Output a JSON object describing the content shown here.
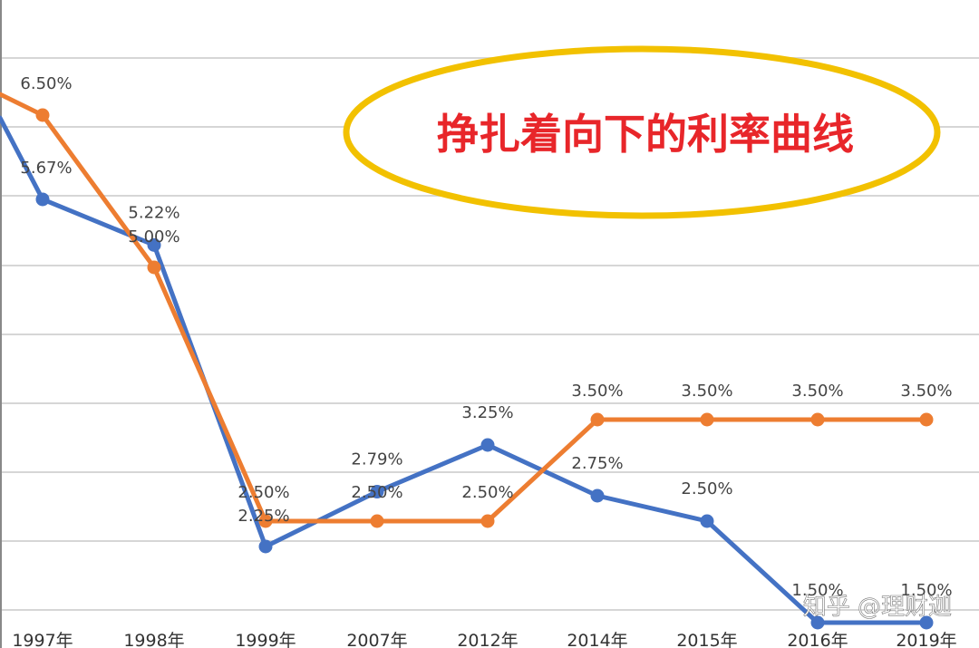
{
  "chart_data": {
    "type": "line",
    "title": "挣扎着向下的利率曲线",
    "categories": [
      "1997年",
      "1998年",
      "1999年",
      "2007年",
      "2012年",
      "2014年",
      "2015年",
      "2016年",
      "2019年"
    ],
    "series": [
      {
        "color": "#4472c4",
        "values": [
          5.67,
          5.22,
          2.25,
          2.79,
          3.25,
          2.75,
          2.5,
          1.5,
          1.5
        ],
        "labels": [
          "5.67%",
          "5.22%",
          "2.25%",
          "2.79%",
          "3.25%",
          "2.75%",
          "2.50%",
          "1.50%",
          "1.50%"
        ]
      },
      {
        "color": "#ed7d31",
        "values": [
          6.5,
          5.0,
          2.5,
          2.5,
          2.5,
          3.5,
          3.5,
          3.5,
          3.5
        ],
        "labels": [
          "6.50%",
          "5.00%",
          "2.50%",
          "2.50%",
          "2.50%",
          "3.50%",
          "3.50%",
          "3.50%",
          "3.50%"
        ]
      }
    ],
    "grid": true,
    "legend": "none"
  },
  "watermark": "知乎 @理财迦"
}
